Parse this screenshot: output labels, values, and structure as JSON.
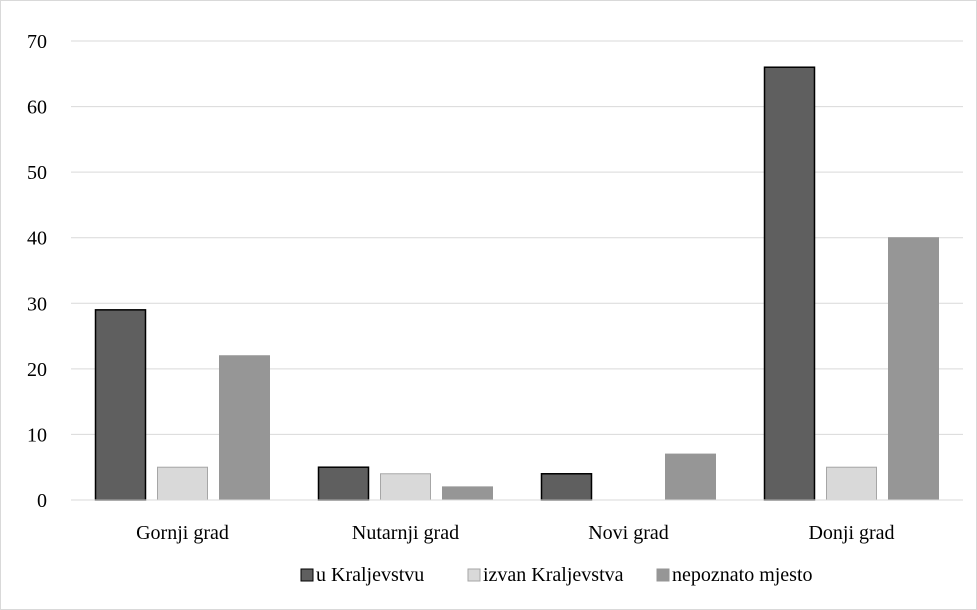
{
  "chart_data": {
    "type": "bar",
    "title": "",
    "xlabel": "",
    "ylabel": "",
    "categories": [
      "Gornji grad",
      "Nutarnji grad",
      "Novi grad",
      "Donji grad"
    ],
    "series": [
      {
        "name": "u Kraljevstvu",
        "values": [
          29,
          5,
          4,
          66
        ],
        "color": "#5f5f5f"
      },
      {
        "name": "izvan Kraljevstva",
        "values": [
          5,
          4,
          0,
          5
        ],
        "color": "#d9d9d9"
      },
      {
        "name": "nepoznato mjesto",
        "values": [
          22,
          2,
          7,
          40
        ],
        "color": "#969696"
      }
    ],
    "ylim": [
      0,
      70
    ],
    "yticks": [
      "0",
      "10",
      "20",
      "30",
      "40",
      "50",
      "60",
      "70"
    ],
    "grid": true,
    "legend_position": "bottom"
  }
}
